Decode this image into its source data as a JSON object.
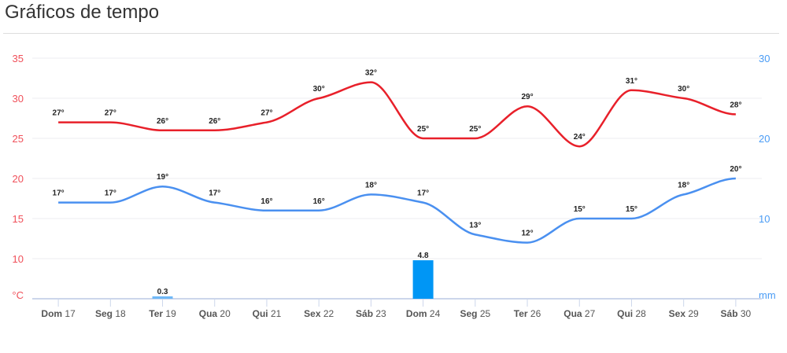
{
  "title": "Gráficos de tempo",
  "chart_data": {
    "type": "line",
    "title": "Gráficos de tempo",
    "categories": [
      {
        "day": "Dom",
        "date": "17"
      },
      {
        "day": "Seg",
        "date": "18"
      },
      {
        "day": "Ter",
        "date": "19"
      },
      {
        "day": "Qua",
        "date": "20"
      },
      {
        "day": "Qui",
        "date": "21"
      },
      {
        "day": "Sex",
        "date": "22"
      },
      {
        "day": "Sáb",
        "date": "23"
      },
      {
        "day": "Dom",
        "date": "24"
      },
      {
        "day": "Seg",
        "date": "25"
      },
      {
        "day": "Ter",
        "date": "26"
      },
      {
        "day": "Qua",
        "date": "27"
      },
      {
        "day": "Qui",
        "date": "28"
      },
      {
        "day": "Sex",
        "date": "29"
      },
      {
        "day": "Sáb",
        "date": "30"
      }
    ],
    "series": [
      {
        "name": "max",
        "type": "line",
        "axis": "left",
        "color": "#e8202a",
        "values": [
          27,
          27,
          26,
          26,
          27,
          30,
          32,
          25,
          25,
          29,
          24,
          31,
          30,
          28
        ]
      },
      {
        "name": "min",
        "type": "line",
        "axis": "left",
        "color": "#4a90f0",
        "values": [
          17,
          17,
          19,
          17,
          16,
          16,
          18,
          17,
          13,
          12,
          15,
          15,
          18,
          20
        ]
      },
      {
        "name": "precipitation",
        "type": "bar",
        "axis": "right",
        "color": "#0096f5",
        "values": [
          0,
          0,
          0.3,
          0,
          0,
          0,
          0,
          4.8,
          0,
          0,
          0,
          0,
          0,
          0
        ],
        "labels": {
          "2": "0.3",
          "7": "4.8"
        }
      }
    ],
    "left_axis": {
      "unit": "°C",
      "ticks": [
        10,
        15,
        20,
        25,
        30,
        35
      ],
      "range": [
        5,
        35
      ],
      "color": "#f0505a"
    },
    "right_axis": {
      "unit": "mm",
      "ticks": [
        10,
        20,
        30
      ],
      "range": [
        0,
        30
      ],
      "color": "#4a9cf5"
    },
    "degree_suffix": "°",
    "grid": true
  }
}
